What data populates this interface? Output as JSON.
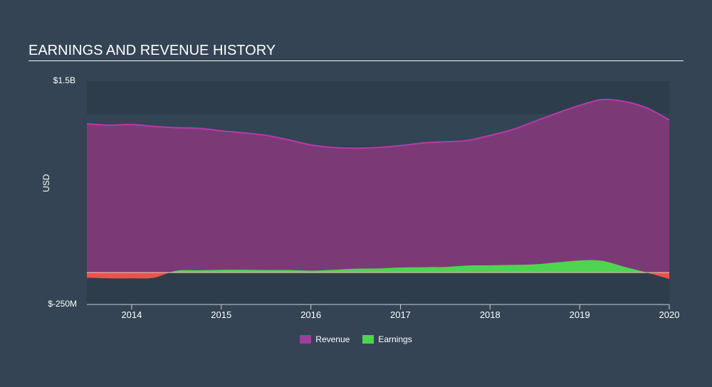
{
  "header": {
    "title": "EARNINGS AND REVENUE HISTORY"
  },
  "axes": {
    "y_label": "USD",
    "y_top_label": "$1.5B",
    "y_bottom_label": "$-250M",
    "x_ticks": [
      "2014",
      "2015",
      "2016",
      "2017",
      "2018",
      "2019",
      "2020"
    ]
  },
  "legend": [
    {
      "label": "Revenue",
      "color": "#a23b9b"
    },
    {
      "label": "Earnings",
      "color": "#4fd451"
    }
  ],
  "colors": {
    "background": "#344454",
    "plot_band_dark": "#2e3d4c",
    "plot_band_light": "#334455",
    "revenue_fill": "#7b3a76",
    "revenue_line": "#b63aa8",
    "earnings_pos": "#4fd451",
    "earnings_neg": "#f05050",
    "zero_line": "#f3c9b8",
    "axis": "#c8d0da"
  },
  "chart_data": {
    "type": "area",
    "title": "EARNINGS AND REVENUE HISTORY",
    "xlabel": "",
    "ylabel": "USD",
    "ylim": [
      -250000000,
      1500000000
    ],
    "xlim": [
      2013.5,
      2020.0
    ],
    "grid": "horizontal bands",
    "legend_position": "bottom-center",
    "x": [
      2013.5,
      2013.75,
      2014.0,
      2014.25,
      2014.5,
      2014.75,
      2015.0,
      2015.25,
      2015.5,
      2015.75,
      2016.0,
      2016.25,
      2016.5,
      2016.75,
      2017.0,
      2017.25,
      2017.5,
      2017.75,
      2018.0,
      2018.25,
      2018.5,
      2018.75,
      2019.0,
      2019.25,
      2019.5,
      2019.75,
      2020.0
    ],
    "series": [
      {
        "name": "Revenue",
        "values": [
          1165000000,
          1155000000,
          1160000000,
          1145000000,
          1135000000,
          1130000000,
          1110000000,
          1095000000,
          1075000000,
          1040000000,
          1000000000,
          980000000,
          975000000,
          980000000,
          995000000,
          1015000000,
          1025000000,
          1035000000,
          1075000000,
          1120000000,
          1185000000,
          1250000000,
          1310000000,
          1355000000,
          1340000000,
          1290000000,
          1195000000
        ]
      },
      {
        "name": "Earnings",
        "values": [
          -40000000,
          -45000000,
          -45000000,
          -40000000,
          15000000,
          18000000,
          22000000,
          22000000,
          20000000,
          20000000,
          15000000,
          22000000,
          30000000,
          32000000,
          40000000,
          42000000,
          44000000,
          55000000,
          57000000,
          60000000,
          65000000,
          80000000,
          95000000,
          92000000,
          45000000,
          0,
          -50000000
        ]
      }
    ]
  }
}
